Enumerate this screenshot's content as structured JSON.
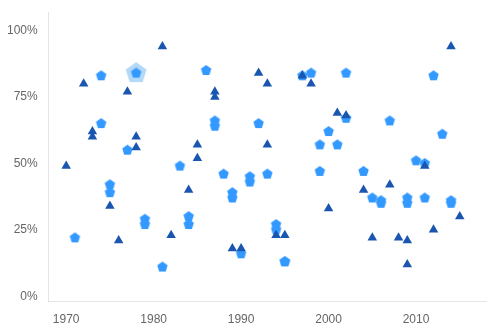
{
  "chart_data": {
    "type": "scatter",
    "xlim": [
      1968,
      2018
    ],
    "ylim": [
      -0.02,
      1.07
    ],
    "xticks": [
      1970,
      1980,
      1990,
      2000,
      2010
    ],
    "yticks": [
      {
        "value": 0,
        "label": "0%"
      },
      {
        "value": 0.25,
        "label": "25%"
      },
      {
        "value": 0.5,
        "label": "50%"
      },
      {
        "value": 0.75,
        "label": "75%"
      },
      {
        "value": 1.0,
        "label": "100%"
      }
    ],
    "grid": false,
    "series": [
      {
        "color": "#b3d9f7",
        "marker": "pentagon",
        "x": [
          1978
        ],
        "values": [
          0.84
        ]
      },
      {
        "color": "#3399FF",
        "marker": "pentagon",
        "x": [
          1971,
          1974,
          1974,
          1975,
          1975,
          1977,
          1978,
          1979,
          1979,
          1981,
          1983,
          1984,
          1984,
          1986,
          1987,
          1987,
          1988,
          1989,
          1989,
          1990,
          1991,
          1991,
          1992,
          1993,
          1994,
          1994,
          1995,
          1995,
          1997,
          1998,
          1999,
          1999,
          2000,
          2001,
          2002,
          2002,
          2004,
          2005,
          2006,
          2006,
          2007,
          2009,
          2009,
          2010,
          2011,
          2011,
          2012,
          2013,
          2014,
          2014
        ],
        "values": [
          0.22,
          0.83,
          0.65,
          0.42,
          0.39,
          0.55,
          0.84,
          0.29,
          0.27,
          0.11,
          0.49,
          0.3,
          0.27,
          0.85,
          0.64,
          0.66,
          0.46,
          0.39,
          0.37,
          0.16,
          0.45,
          0.43,
          0.65,
          0.46,
          0.27,
          0.25,
          0.13,
          0.13,
          0.83,
          0.84,
          0.57,
          0.47,
          0.62,
          0.57,
          0.84,
          0.67,
          0.47,
          0.37,
          0.36,
          0.35,
          0.66,
          0.37,
          0.35,
          0.51,
          0.5,
          0.37,
          0.83,
          0.61,
          0.36,
          0.35
        ]
      },
      {
        "color": "#1a56b0",
        "marker": "triangle",
        "x": [
          1970,
          1972,
          1973,
          1973,
          1975,
          1976,
          1977,
          1978,
          1978,
          1981,
          1982,
          1984,
          1985,
          1985,
          1987,
          1987,
          1989,
          1990,
          1992,
          1993,
          1993,
          1994,
          1995,
          1997,
          1998,
          2000,
          2001,
          2002,
          2004,
          2005,
          2007,
          2008,
          2009,
          2009,
          2011,
          2012,
          2014,
          2015
        ],
        "values": [
          0.49,
          0.8,
          0.62,
          0.6,
          0.34,
          0.21,
          0.77,
          0.56,
          0.6,
          0.94,
          0.23,
          0.4,
          0.57,
          0.52,
          0.77,
          0.75,
          0.18,
          0.18,
          0.84,
          0.8,
          0.57,
          0.23,
          0.23,
          0.83,
          0.8,
          0.33,
          0.69,
          0.68,
          0.4,
          0.22,
          0.42,
          0.22,
          0.12,
          0.21,
          0.49,
          0.25,
          0.94,
          0.3
        ]
      }
    ]
  }
}
